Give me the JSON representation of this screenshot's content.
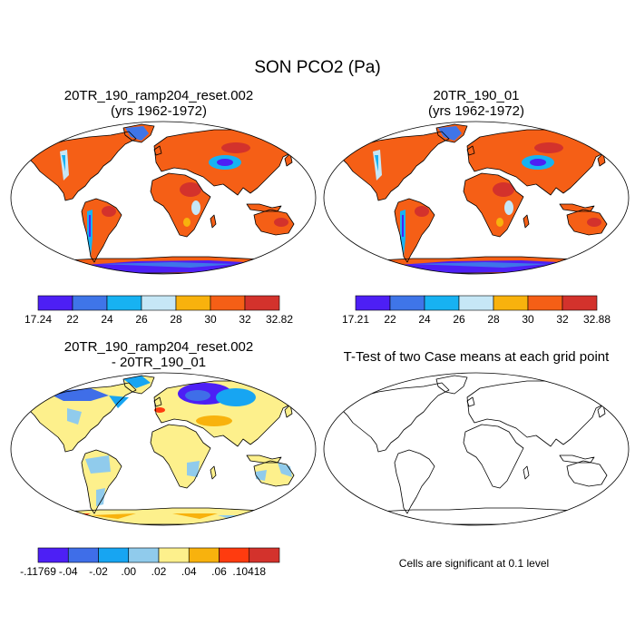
{
  "title": "SON PCO2 (Pa)",
  "panels": [
    {
      "id": "p1",
      "title_line1": "20TR_190_ramp204_reset.002",
      "title_line2": "(yrs 1962-1972)",
      "kind": "field",
      "colors": [
        "#4d1ff5",
        "#3f75e8",
        "#17b2f2",
        "#c6e7f6",
        "#f8b20d",
        "#f55f16",
        "#d3322c"
      ],
      "labels": [
        "17.24",
        "22",
        "24",
        "26",
        "28",
        "30",
        "32",
        "32.82"
      ]
    },
    {
      "id": "p2",
      "title_line1": "20TR_190_01",
      "title_line2": "(yrs 1962-1972)",
      "kind": "field",
      "colors": [
        "#4d1ff5",
        "#3f75e8",
        "#17b2f2",
        "#c6e7f6",
        "#f8b20d",
        "#f55f16",
        "#d3322c"
      ],
      "labels": [
        "17.21",
        "22",
        "24",
        "26",
        "28",
        "30",
        "32",
        "32.88"
      ]
    },
    {
      "id": "p3",
      "title_line1": "20TR_190_ramp204_reset.002",
      "title_line2": "- 20TR_190_01",
      "kind": "diff",
      "colors": [
        "#4d1ff5",
        "#3f6ee8",
        "#17a5f2",
        "#90cbec",
        "#fdf08c",
        "#f8b20d",
        "#ff3b0f",
        "#d3322c"
      ],
      "labels": [
        "-.11769",
        "-.04",
        "-.02",
        ".00",
        ".02",
        ".04",
        ".06",
        ".10418"
      ]
    },
    {
      "id": "p4",
      "title_line1": "T-Test of two Case means at each grid point",
      "title_line2": "",
      "kind": "ttest",
      "note": "Cells are significant at 0.1 level"
    }
  ],
  "chart_data": {
    "type": "heatmap",
    "title": "SON PCO2 (Pa)",
    "projection": "Robinson",
    "panels": [
      {
        "title": "20TR_190_ramp204_reset.002 (yrs 1962-1972)",
        "colorbar": {
          "min": 17.24,
          "max": 32.82,
          "levels": [
            22,
            24,
            26,
            28,
            30,
            32
          ]
        }
      },
      {
        "title": "20TR_190_01 (yrs 1962-1972)",
        "colorbar": {
          "min": 17.21,
          "max": 32.88,
          "levels": [
            22,
            24,
            26,
            28,
            30,
            32
          ]
        }
      },
      {
        "title": "20TR_190_ramp204_reset.002 - 20TR_190_01",
        "colorbar": {
          "min": -0.11769,
          "max": 0.10418,
          "levels": [
            -0.04,
            -0.02,
            0.0,
            0.02,
            0.04,
            0.06
          ]
        }
      },
      {
        "title": "T-Test of two Case means at each grid point",
        "note": "Cells are significant at 0.1 level"
      }
    ]
  }
}
